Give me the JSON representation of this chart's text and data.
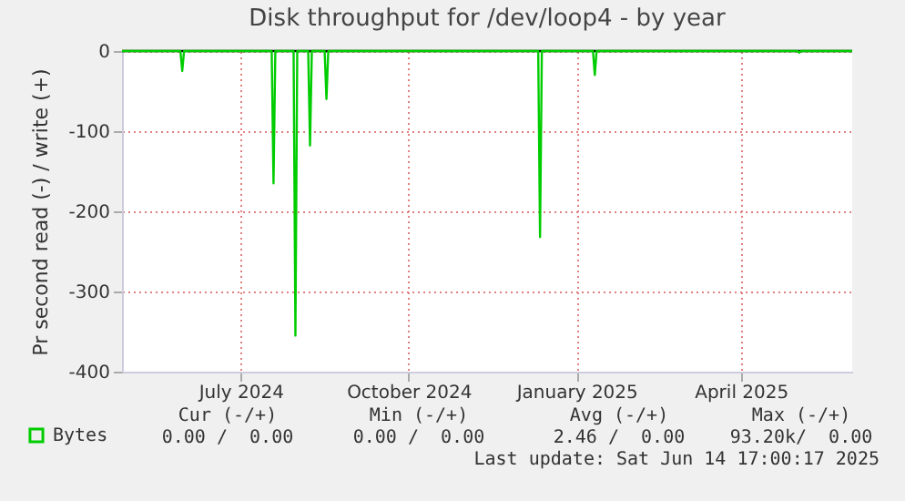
{
  "chart_data": {
    "type": "line",
    "title": "Disk throughput for /dev/loop4 - by year",
    "ylabel": "Pr second read (-) / write (+)",
    "x": [
      "2024-04-27",
      "2024-05-29",
      "2024-05-30",
      "2024-05-31",
      "2024-07-18",
      "2024-07-19",
      "2024-07-20",
      "2024-07-30",
      "2024-07-31",
      "2024-08-01",
      "2024-08-07",
      "2024-08-08",
      "2024-08-09",
      "2024-08-16",
      "2024-08-17",
      "2024-08-18",
      "2024-12-11",
      "2024-12-12",
      "2024-12-13",
      "2025-01-10",
      "2025-01-11",
      "2025-01-12",
      "2025-05-02",
      "2025-05-03",
      "2025-05-04",
      "2025-06-01"
    ],
    "series": [
      {
        "name": "Bytes",
        "color": "#00cc00",
        "values": [
          0,
          0,
          -25,
          0,
          0,
          -165,
          0,
          0,
          -355,
          0,
          0,
          -118,
          0,
          0,
          -60,
          0,
          0,
          -232,
          0,
          0,
          -30,
          0,
          0,
          -2,
          0,
          0
        ]
      }
    ],
    "xlim": [
      "2024-04-27",
      "2025-06-01"
    ],
    "xticks": [
      {
        "value": "2024-07-01",
        "label": "July 2024"
      },
      {
        "value": "2024-10-01",
        "label": "October 2024"
      },
      {
        "value": "2025-01-01",
        "label": "January 2025"
      },
      {
        "value": "2025-04-01",
        "label": "April 2025"
      }
    ],
    "ylim": [
      -400,
      0
    ],
    "yticks": [
      -400,
      -300,
      -200,
      -100,
      0
    ],
    "ref_lines": [
      {
        "axis": "y",
        "value": 0,
        "color": "#000000"
      }
    ],
    "grid": true,
    "legend": "bottom left",
    "marker": "none",
    "line_style": "solid",
    "annotations": [
      "Cur (-/+)",
      "Min (-/+)",
      "Avg (-/+)",
      "Max (-/+)",
      "0.00 /  0.00",
      "0.00 /  0.00",
      "2.46 /  0.00",
      "93.20k/  0.00",
      "Last update: Sat Jun 14 17:00:17 2025"
    ]
  }
}
